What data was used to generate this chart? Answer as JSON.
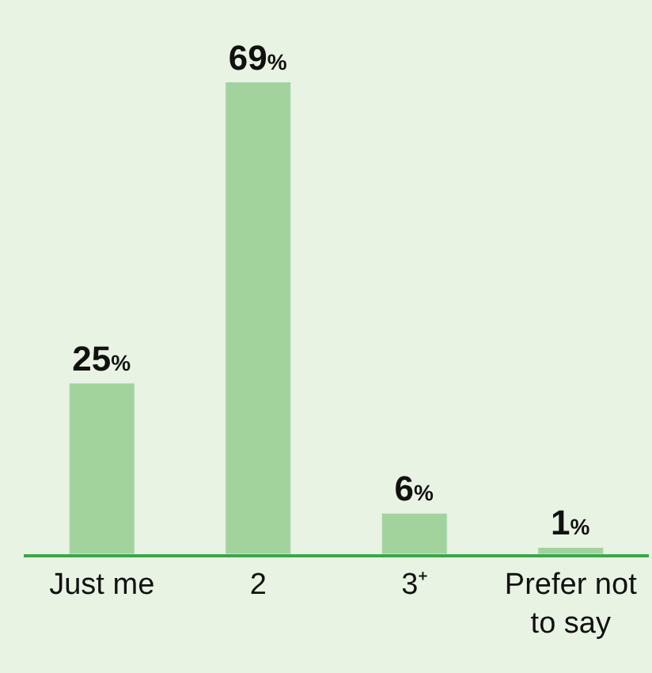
{
  "chart_data": {
    "type": "bar",
    "categories": [
      "Just me",
      "2",
      "3⁺",
      "Prefer not to say"
    ],
    "values": [
      25,
      69,
      6,
      1
    ],
    "value_labels": [
      "25%",
      "69%",
      "6%",
      "1%"
    ],
    "color": "#a3d39c",
    "grid": false
  }
}
